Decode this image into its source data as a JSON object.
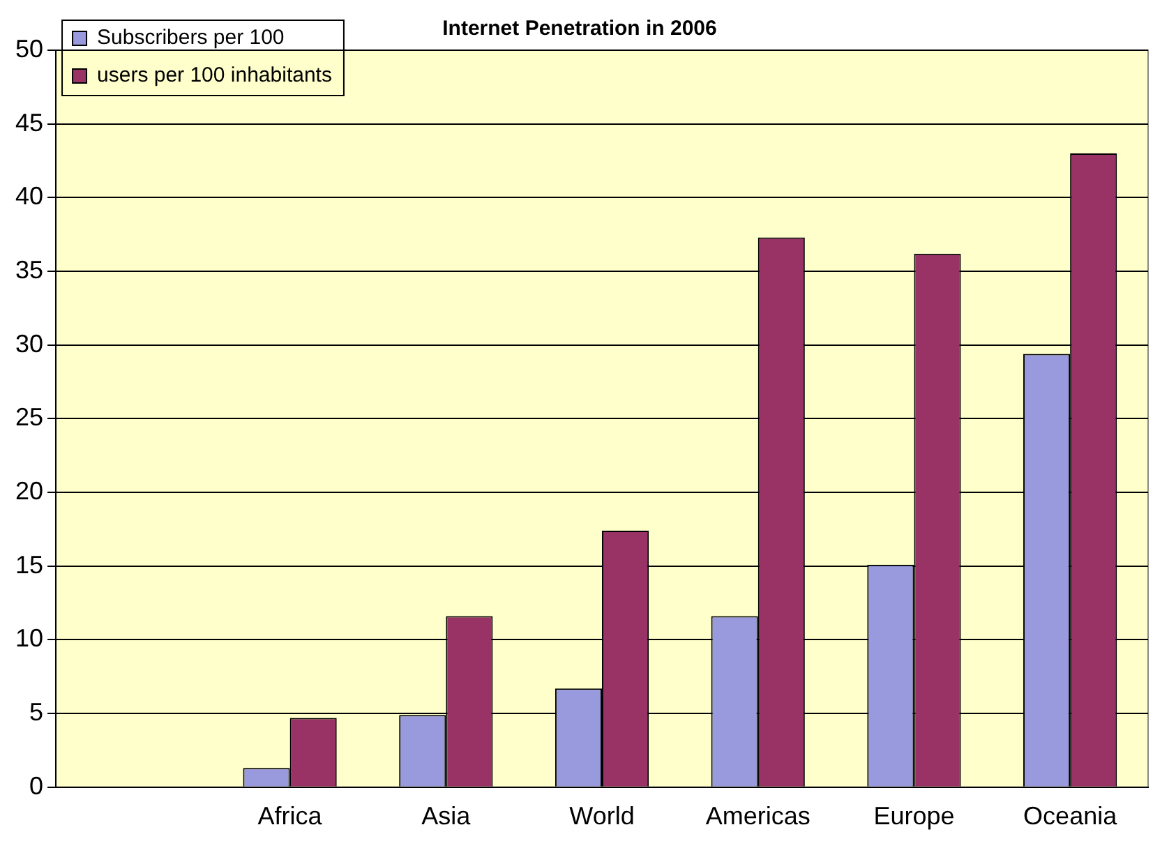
{
  "chart_data": {
    "type": "bar",
    "title": "Internet Penetration in 2006",
    "categories": [
      null,
      "Africa",
      "Asia",
      "World",
      "Americas",
      "Europe",
      "Oceania"
    ],
    "series": [
      {
        "name": "Subscribers per 100",
        "color": "#9999dd",
        "values": [
          null,
          1.3,
          4.9,
          6.7,
          11.6,
          15.1,
          29.4
        ]
      },
      {
        "name": "users per 100 inhabitants",
        "color": "#993366",
        "values": [
          null,
          4.7,
          11.6,
          17.4,
          37.3,
          36.2,
          43.0
        ]
      }
    ],
    "ylim": [
      0,
      50
    ],
    "yticks": [
      0,
      5,
      10,
      15,
      20,
      25,
      30,
      35,
      40,
      45,
      50
    ],
    "grid": "y",
    "legend": "top left"
  }
}
